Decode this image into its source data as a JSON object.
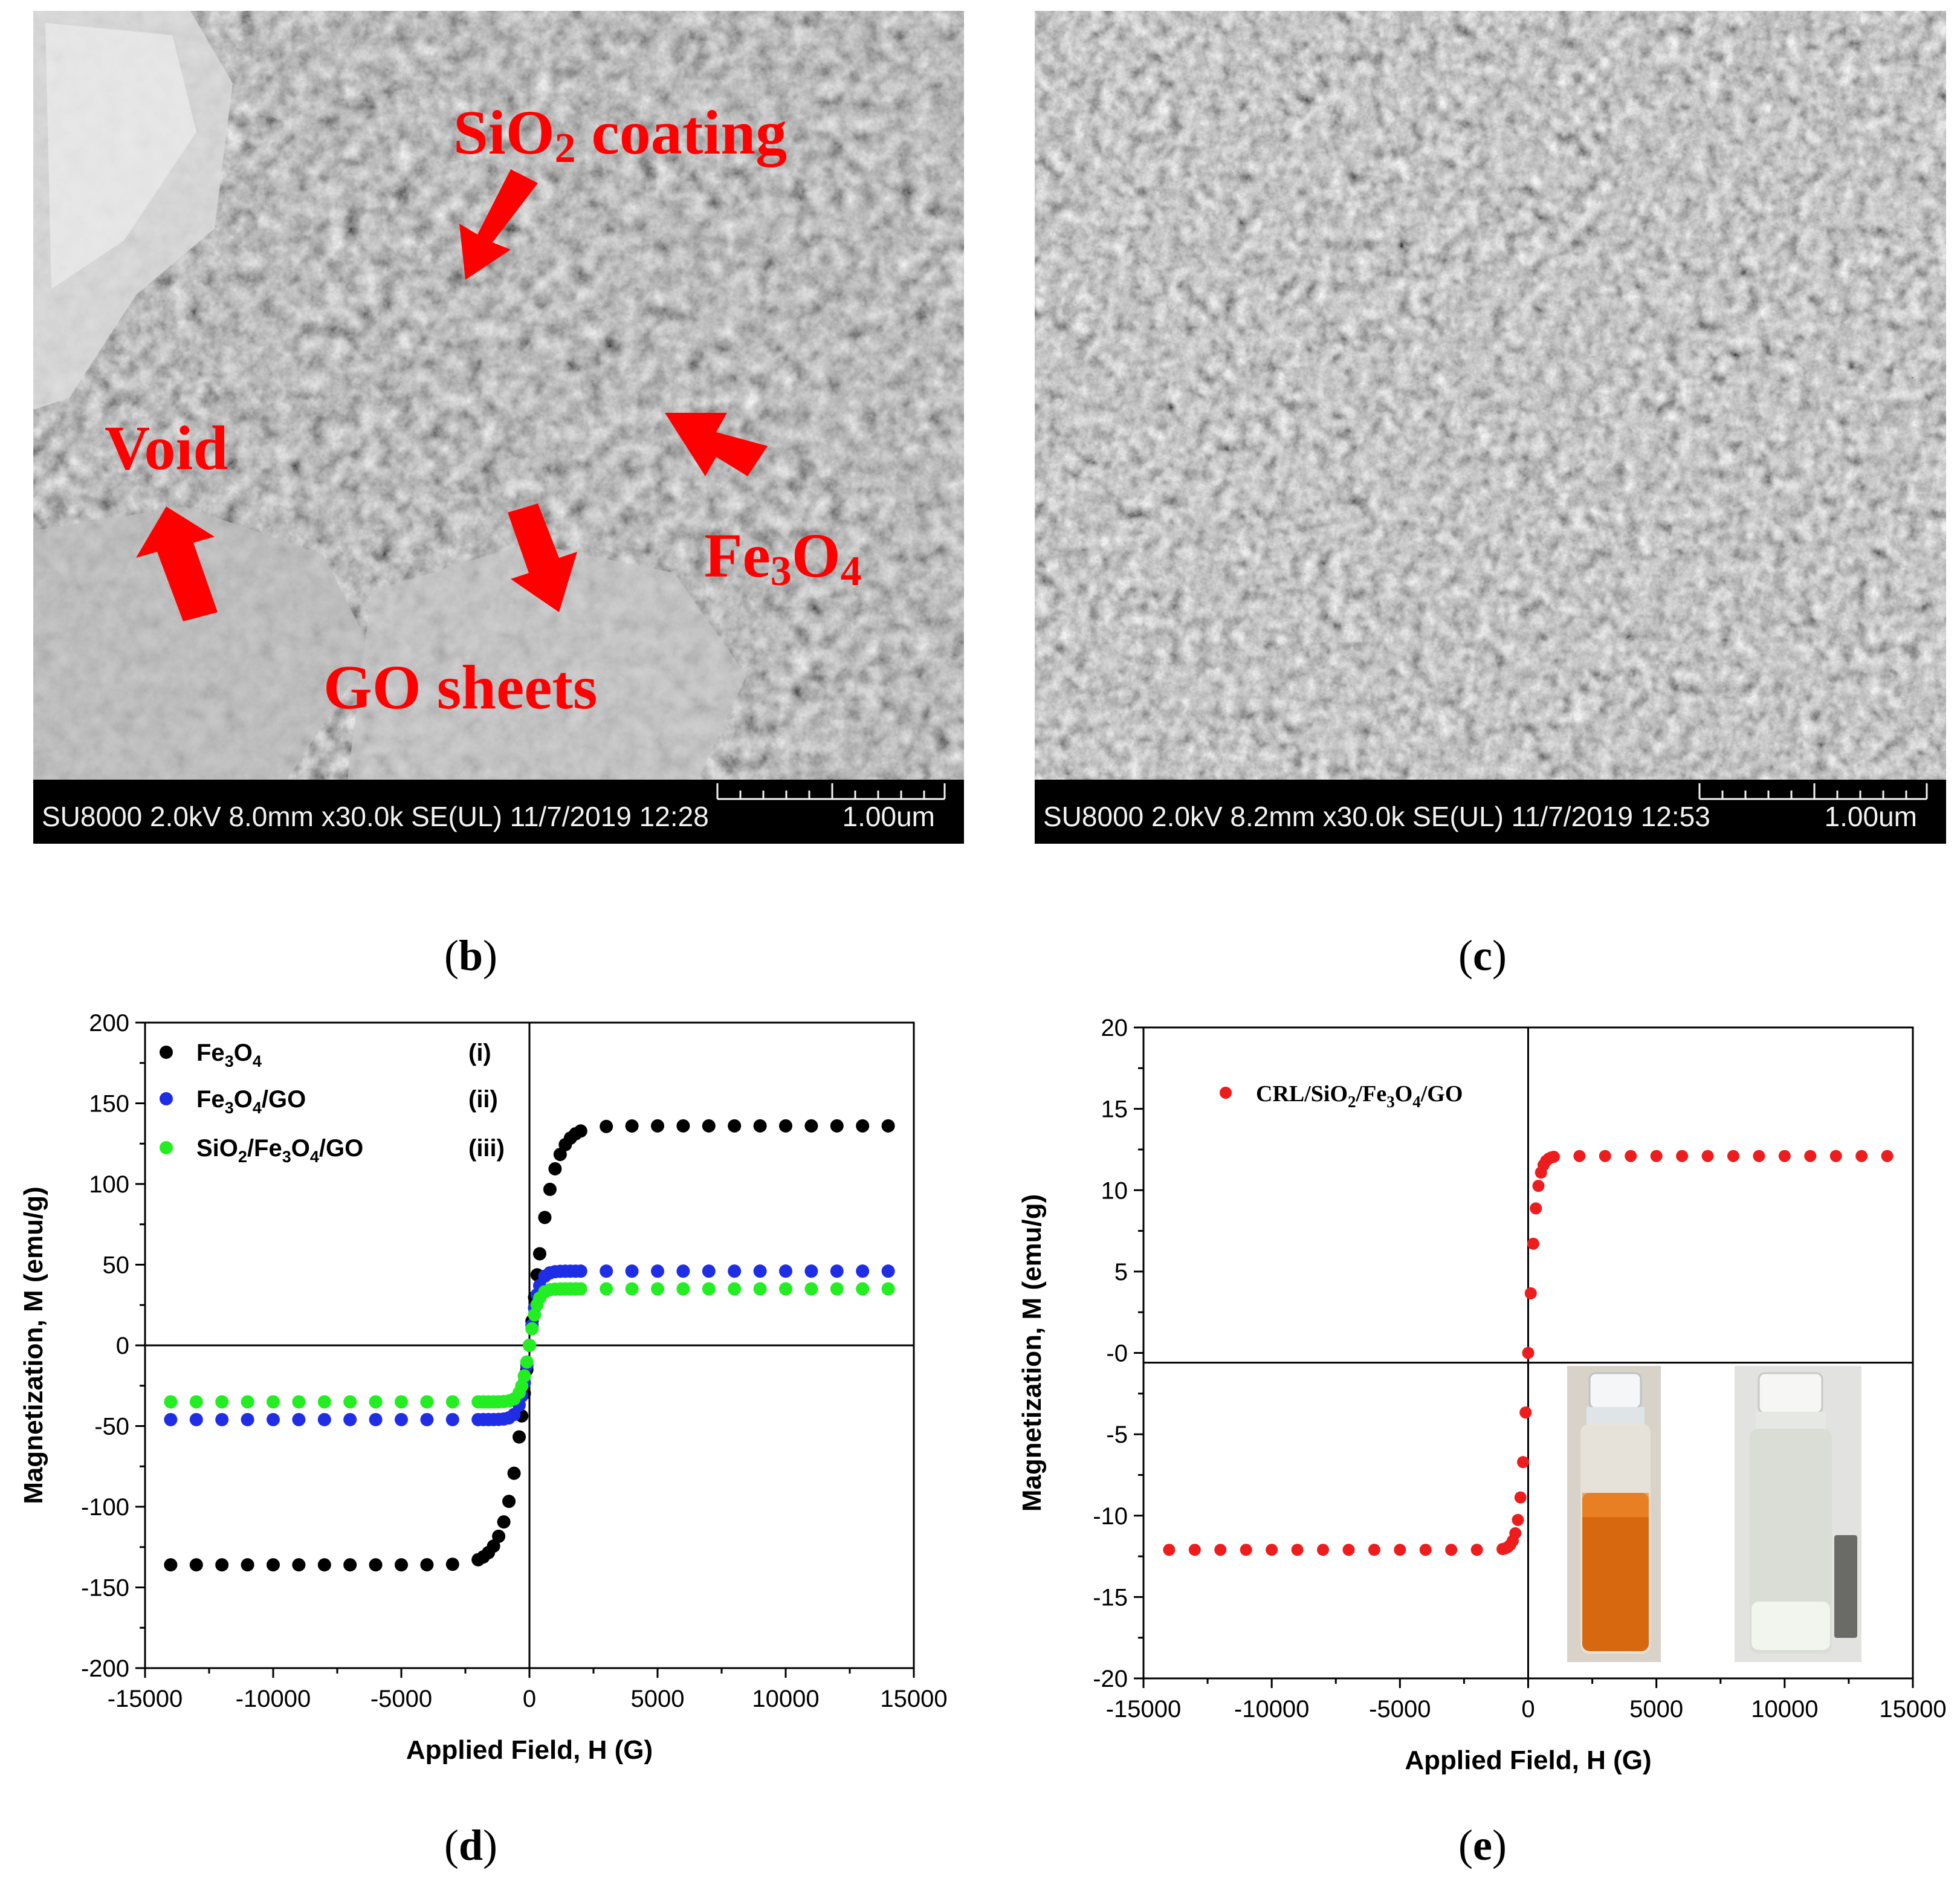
{
  "sem_images": [
    {
      "info": "SU8000 2.0kV 8.0mm x30.0k SE(UL) 11/7/2019 12:28",
      "scale": "1.00um",
      "annotations": {
        "sio2_pre": "SiO",
        "sio2_sub": "2",
        "sio2_post": " coating",
        "void": "Void",
        "fe_pre": "Fe",
        "fe_sub1": "3",
        "fe_mid": "O",
        "fe_sub2": "4",
        "go": "GO sheets"
      }
    },
    {
      "info": "SU8000 2.0kV 8.2mm x30.0k SE(UL) 11/7/2019 12:53",
      "scale": "1.00um"
    }
  ],
  "panel_labels": {
    "b": "b",
    "c": "c",
    "d": "d",
    "e": "e"
  },
  "chart_data": [
    {
      "type": "scatter",
      "panel": "d",
      "xlabel": "Applied Field, H (G)",
      "ylabel": "Magnetization, M (emu/g)",
      "xlim": [
        -15000,
        15000
      ],
      "ylim": [
        -200,
        200
      ],
      "xticks": [
        -15000,
        -10000,
        -5000,
        0,
        5000,
        10000,
        15000
      ],
      "yticks": [
        -200,
        -150,
        -100,
        -50,
        0,
        50,
        100,
        150,
        200
      ],
      "xtick_labels": [
        "-15000",
        "-10000",
        "-5000",
        "0",
        "5000",
        "10000",
        "15000"
      ],
      "ytick_labels": [
        "-200",
        "-150",
        "-100",
        "-50",
        "0",
        "50",
        "100",
        "150",
        "200"
      ],
      "legend_placement": "top-left",
      "series": [
        {
          "name": "Fe3O4",
          "legend": {
            "base": "Fe",
            "s1": "3",
            "mid": "O",
            "s2": "4",
            "tail": "",
            "tag": "(i)"
          },
          "color": "#000000",
          "ms": 136,
          "hk": 900,
          "x": [
            -14000,
            -13000,
            -12000,
            -11000,
            -10000,
            -9000,
            -8000,
            -7000,
            -6000,
            -5000,
            -4000,
            -3000,
            -2000,
            -1800,
            -1600,
            -1400,
            -1200,
            -1000,
            -800,
            -600,
            -400,
            -300,
            -200,
            -100,
            0,
            100,
            200,
            300,
            400,
            600,
            800,
            1000,
            1200,
            1400,
            1600,
            1800,
            2000,
            3000,
            4000,
            5000,
            6000,
            7000,
            8000,
            9000,
            10000,
            11000,
            12000,
            13000,
            14000
          ]
        },
        {
          "name": "Fe3O4/GO",
          "legend": {
            "base": "Fe",
            "s1": "3",
            "mid": "O",
            "s2": "4",
            "tail": "/GO",
            "tag": "(ii)"
          },
          "color": "#1f2ee6",
          "ms": 46,
          "hk": 360,
          "x": [
            -14000,
            -13000,
            -12000,
            -11000,
            -10000,
            -9000,
            -8000,
            -7000,
            -6000,
            -5000,
            -4000,
            -3000,
            -2000,
            -1800,
            -1600,
            -1400,
            -1200,
            -1000,
            -800,
            -600,
            -400,
            -300,
            -200,
            -100,
            0,
            100,
            200,
            300,
            400,
            600,
            800,
            1000,
            1200,
            1400,
            1600,
            1800,
            2000,
            3000,
            4000,
            5000,
            6000,
            7000,
            8000,
            9000,
            10000,
            11000,
            12000,
            13000,
            14000
          ]
        },
        {
          "name": "SiO2/Fe3O4/GO",
          "legend": {
            "pre": "SiO",
            "p1": "2",
            "base": "/Fe",
            "s1": "3",
            "mid": "O",
            "s2": "4",
            "tail": "/GO",
            "tag": "(iii)"
          },
          "color": "#22ee22",
          "ms": 35,
          "hk": 330,
          "x": [
            -14000,
            -13000,
            -12000,
            -11000,
            -10000,
            -9000,
            -8000,
            -7000,
            -6000,
            -5000,
            -4000,
            -3000,
            -2000,
            -1800,
            -1600,
            -1400,
            -1200,
            -1000,
            -800,
            -600,
            -400,
            -300,
            -200,
            -100,
            0,
            100,
            200,
            300,
            400,
            600,
            800,
            1000,
            1200,
            1400,
            1600,
            1800,
            2000,
            3000,
            4000,
            5000,
            6000,
            7000,
            8000,
            9000,
            10000,
            11000,
            12000,
            13000,
            14000
          ]
        }
      ]
    },
    {
      "type": "scatter",
      "panel": "e",
      "xlabel": "Applied Field, H (G)",
      "ylabel": "Magnetization, M (emu/g)",
      "xlim": [
        -15000,
        15000
      ],
      "ylim": [
        -20,
        20
      ],
      "xticks": [
        -15000,
        -10000,
        -5000,
        0,
        5000,
        10000,
        15000
      ],
      "yticks": [
        -20,
        -15,
        -10,
        -5,
        0,
        5,
        10,
        15,
        20
      ],
      "xtick_labels": [
        "-15000",
        "-10000",
        "-5000",
        "0",
        "5000",
        "10000",
        "15000"
      ],
      "ytick_labels": [
        "-20",
        "-15",
        "-10",
        "-5",
        "-0",
        "5",
        "10",
        "15",
        "20"
      ],
      "legend_placement": "top-left",
      "series": [
        {
          "name": "CRL/SiO2/Fe3O4/GO",
          "legend": {
            "pre": "CRL/SiO",
            "p1": "2",
            "base": "/Fe",
            "s1": "3",
            "mid": "O",
            "s2": "4",
            "tail": "/GO"
          },
          "color": "#ee1c1c",
          "ms": 12.1,
          "hk": 320,
          "x": [
            -14000,
            -13000,
            -12000,
            -11000,
            -10000,
            -9000,
            -8000,
            -7000,
            -6000,
            -5000,
            -4000,
            -3000,
            -2000,
            -1000,
            -900,
            -800,
            -700,
            -600,
            -500,
            -400,
            -300,
            -200,
            -100,
            0,
            100,
            200,
            300,
            400,
            500,
            600,
            700,
            800,
            900,
            1000,
            2000,
            3000,
            4000,
            5000,
            6000,
            7000,
            8000,
            9000,
            10000,
            11000,
            12000,
            13000,
            14000
          ]
        }
      ]
    }
  ]
}
